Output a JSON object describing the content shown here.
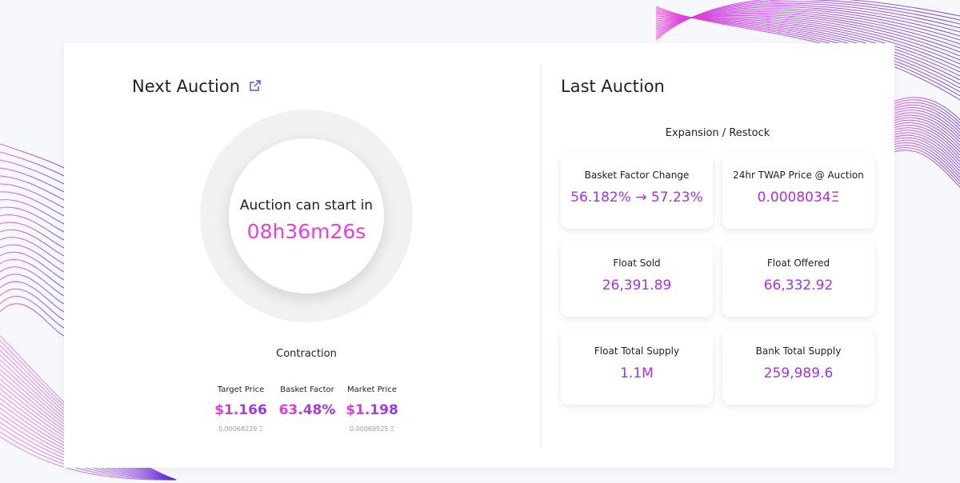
{
  "next_auction": {
    "title": "Next Auction",
    "countdown_label": "Auction can start in",
    "countdown": "08h36m26s",
    "mode": "Contraction",
    "stats": [
      {
        "label": "Target Price",
        "value": "$1.166",
        "sub": "0.00068229 Ξ"
      },
      {
        "label": "Basket Factor",
        "value": "63.48%"
      },
      {
        "label": "Market Price",
        "value": "$1.198",
        "sub": "0.00069525 Ξ"
      }
    ]
  },
  "last_auction": {
    "title": "Last Auction",
    "mode": "Expansion / Restock",
    "cards": [
      {
        "label": "Basket Factor Change",
        "value": "56.182% → 57.23%"
      },
      {
        "label": "24hr TWAP Price @ Auction",
        "value": "0.0008034Ξ"
      },
      {
        "label": "Float Sold",
        "value": "26,391.89"
      },
      {
        "label": "Float Offered",
        "value": "66,332.92"
      },
      {
        "label": "Float Total Supply",
        "value": "1.1M"
      },
      {
        "label": "Bank Total Supply",
        "value": "259,989.6"
      }
    ]
  }
}
